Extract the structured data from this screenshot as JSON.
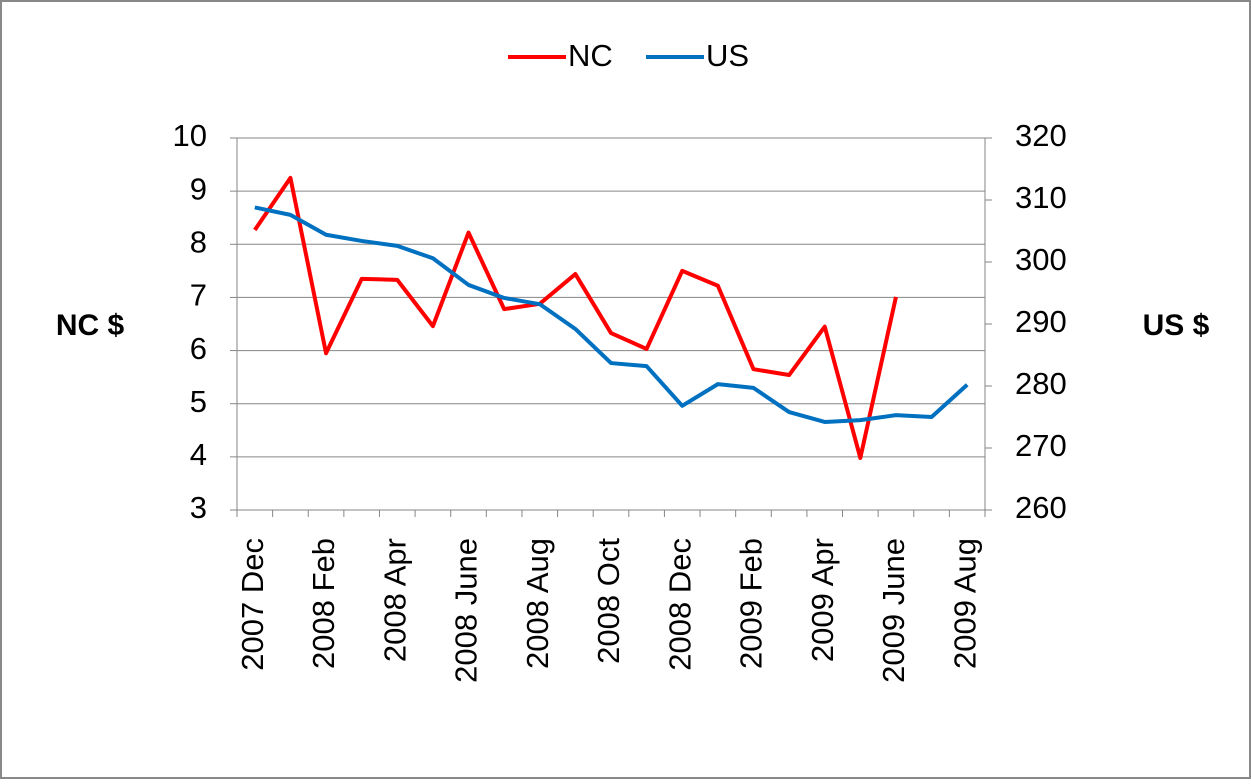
{
  "chart_data": {
    "type": "line",
    "categories": [
      "2007 Dec",
      null,
      "2008 Feb",
      null,
      "2008 Apr",
      null,
      "2008 June",
      null,
      "2008 Aug",
      null,
      "2008 Oct",
      null,
      "2008 Dec",
      null,
      "2009 Feb",
      null,
      "2009 Apr",
      null,
      "2009 June",
      null,
      "2009 Aug"
    ],
    "series": [
      {
        "name": "NC",
        "color": "#ff0000",
        "values": [
          8.27,
          9.25,
          5.95,
          7.35,
          7.33,
          6.46,
          8.22,
          6.78,
          6.88,
          7.44,
          6.33,
          6.03,
          7.5,
          7.22,
          5.65,
          5.54,
          6.45,
          3.98,
          7.01,
          null,
          null
        ]
      },
      {
        "name": "US",
        "color": "#0070c0",
        "axis": "y2",
        "values": [
          308.8,
          307.6,
          304.4,
          303.4,
          302.6,
          300.6,
          296.3,
          294.2,
          293.2,
          289.2,
          283.7,
          283.2,
          276.8,
          280.3,
          279.7,
          275.8,
          274.2,
          274.5,
          275.3,
          275.0,
          280.2
        ]
      }
    ],
    "ylabel": "NC $",
    "y2label": "US $",
    "ylim": [
      3,
      10
    ],
    "yticks": [
      3,
      4,
      5,
      6,
      7,
      8,
      9,
      10
    ],
    "y2lim": [
      260,
      320
    ],
    "y2ticks": [
      260,
      270,
      280,
      290,
      300,
      310,
      320
    ],
    "grid": true,
    "legend": "top"
  }
}
